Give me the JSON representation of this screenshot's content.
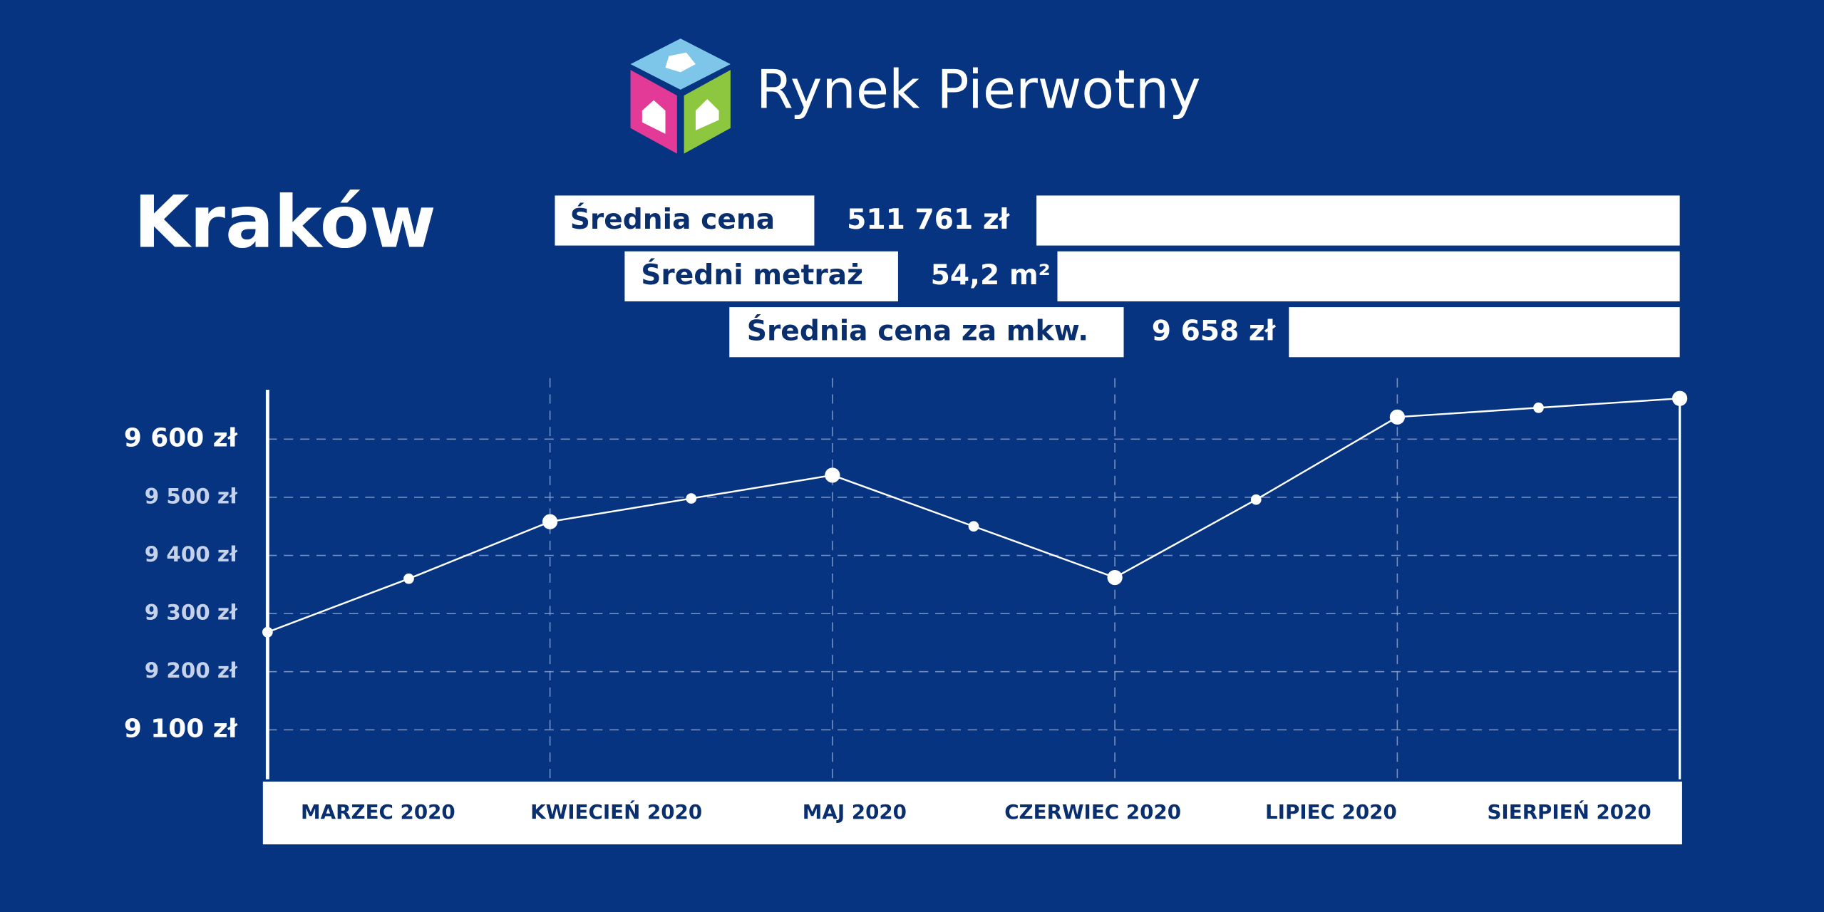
{
  "header": {
    "brand": "Rynek Pierwotny",
    "city": "Kraków"
  },
  "stats": [
    {
      "label": "Średnia cena",
      "value": "511 761 zł"
    },
    {
      "label": "Średni metraż",
      "value": "54,2 m²"
    },
    {
      "label": "Średnia cena za mkw.",
      "value": "9 658 zł"
    }
  ],
  "chart_data": {
    "type": "line",
    "categories": [
      null,
      "MARZEC 2020",
      "KWIECIEŃ 2020",
      null,
      "MAJ 2020",
      null,
      "CZERWIEC 2020",
      null,
      "LIPIEC 2020",
      "SIERPIEŃ 2020",
      null
    ],
    "values": [
      9268,
      9360,
      9458,
      9498,
      9538,
      9450,
      9362,
      9496,
      9638,
      9654,
      9670
    ],
    "color": "#ffffff",
    "ylim": [
      9015,
      9685
    ],
    "yticks": [
      {
        "value": 9600,
        "label": "9 600 zł"
      },
      {
        "value": 9500,
        "label": "9 500 zł"
      },
      {
        "value": 9400,
        "label": "9 400 zł"
      },
      {
        "value": 9300,
        "label": "9 300 zł"
      },
      {
        "value": 9200,
        "label": "9 200 zł"
      },
      {
        "value": 9100,
        "label": "9 100 zł"
      }
    ],
    "grid": true
  }
}
